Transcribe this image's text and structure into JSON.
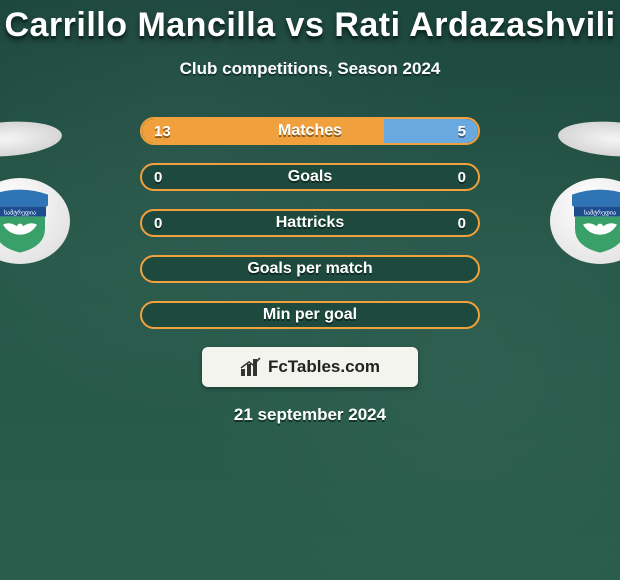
{
  "title": "Carrillo Mancilla vs Rati Ardazashvili",
  "subtitle": "Club competitions, Season 2024",
  "date": "21 september 2024",
  "watermark": {
    "text": "FcTables.com"
  },
  "colors": {
    "left": "#f0a03c",
    "right": "#6aa8e0",
    "pill_border_default": "#f0a03c",
    "bg_from": "#1c473d",
    "bg_to": "#2a5d4c"
  },
  "badge": {
    "top_color": "#2f74b5",
    "banner_color": "#1d4d8f",
    "shield_color": "#3aa06a",
    "wing_color": "#ffffff",
    "text": "სამტრედია"
  },
  "rows": [
    {
      "label": "Matches",
      "left": "13",
      "right": "5",
      "left_pct": 72,
      "right_pct": 28,
      "border": "#f0a03c"
    },
    {
      "label": "Goals",
      "left": "0",
      "right": "0",
      "left_pct": 0,
      "right_pct": 0,
      "border": "#f0a03c"
    },
    {
      "label": "Hattricks",
      "left": "0",
      "right": "0",
      "left_pct": 0,
      "right_pct": 0,
      "border": "#f0a03c"
    },
    {
      "label": "Goals per match",
      "left": "",
      "right": "",
      "left_pct": 0,
      "right_pct": 0,
      "border": "#f0a03c"
    },
    {
      "label": "Min per goal",
      "left": "",
      "right": "",
      "left_pct": 0,
      "right_pct": 0,
      "border": "#f0a03c"
    }
  ]
}
